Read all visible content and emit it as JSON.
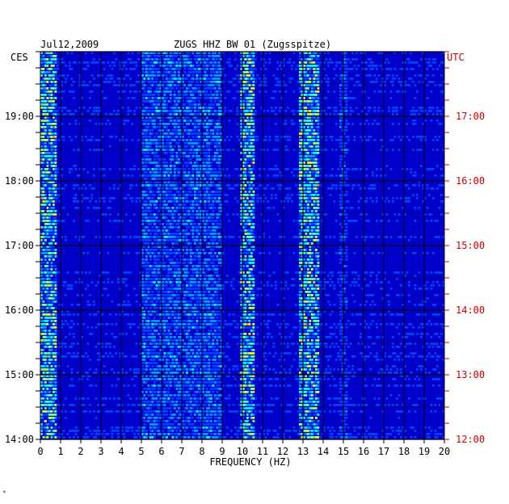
{
  "header": {
    "date": "Jul12,2009",
    "station": "ZUGS HHZ BW 01 (Zugsspitze)",
    "left_zone": "CES",
    "right_zone": "UTC"
  },
  "footer": {
    "mark": "*"
  },
  "colors": {
    "background": "#0000c8",
    "grid": "#000000",
    "utc_text": "#cc0000",
    "label_text": "#000000"
  },
  "chart_data": {
    "type": "heatmap",
    "title": "ZUGS HHZ BW 01 (Zugsspitze)",
    "date": "Jul12,2009",
    "xlabel": "FREQUENCY (HZ)",
    "xlim": [
      0,
      20
    ],
    "x_ticks": [
      "0",
      "1",
      "2",
      "3",
      "4",
      "5",
      "6",
      "7",
      "8",
      "9",
      "10",
      "11",
      "12",
      "13",
      "14",
      "15",
      "16",
      "17",
      "18",
      "19",
      "20"
    ],
    "y_left_label": "CES",
    "y_left_ticks": [
      "19:00",
      "18:00",
      "17:00",
      "16:00",
      "15:00",
      "14:00"
    ],
    "y_right_label": "UTC",
    "y_right_ticks": [
      "17:00",
      "16:00",
      "15:00",
      "14:00",
      "13:00",
      "12:00"
    ],
    "time_range_utc": [
      "12:00",
      "18:00"
    ],
    "colorscale": [
      "#0000aa",
      "#0040ff",
      "#00a0ff",
      "#00ffff",
      "#80ff80",
      "#ffff00",
      "#ff8000",
      "#ff0000"
    ],
    "energy_bands_hz": [
      {
        "from": 0.0,
        "to": 0.8,
        "level": "high"
      },
      {
        "from": 9.9,
        "to": 10.6,
        "level": "high"
      },
      {
        "from": 12.8,
        "to": 13.8,
        "level": "high"
      },
      {
        "from": 5.0,
        "to": 9.0,
        "level": "medium"
      },
      {
        "from": 14.8,
        "to": 15.2,
        "level": "low"
      }
    ],
    "grid": true
  }
}
